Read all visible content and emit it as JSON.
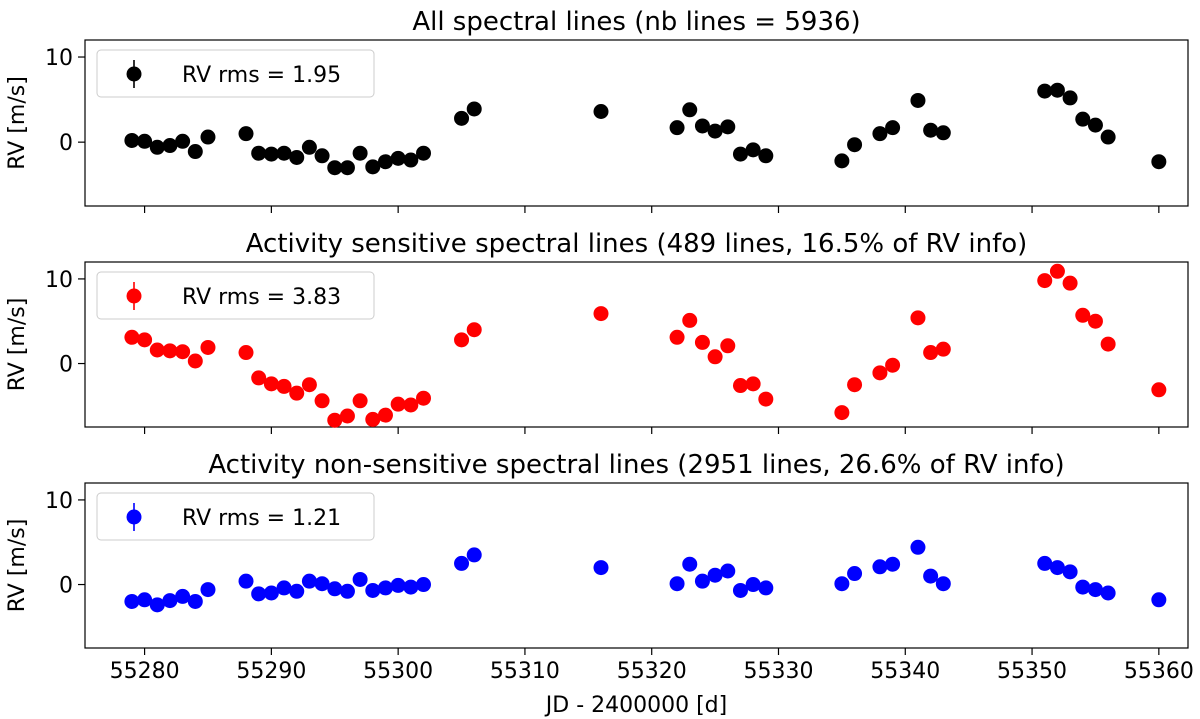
{
  "xlabel": "JD - 2400000 [d]",
  "ylabel": "RV [m/s]",
  "xticks": [
    55280,
    55290,
    55300,
    55310,
    55320,
    55330,
    55340,
    55350,
    55360
  ],
  "chart_data": [
    {
      "type": "scatter",
      "title": "All spectral lines (nb lines = 5936)",
      "xlabel": "",
      "ylabel": "RV [m/s]",
      "xlim": [
        55275.3,
        55362.3
      ],
      "ylim": [
        -7.5,
        12
      ],
      "yticks": [
        0,
        10
      ],
      "color": "#000000",
      "legend": "RV rms = 1.95",
      "legend_location": "upper left",
      "x": [
        55279,
        55280,
        55281,
        55282,
        55283,
        55284,
        55285,
        55288,
        55289,
        55290,
        55291,
        55292,
        55293,
        55294,
        55295,
        55296,
        55297,
        55298,
        55299,
        55300,
        55301,
        55302,
        55305,
        55306,
        55316,
        55322,
        55323,
        55324,
        55325,
        55326,
        55327,
        55328,
        55329,
        55335,
        55336,
        55338,
        55339,
        55341,
        55342,
        55343,
        55351,
        55352,
        55353,
        55354,
        55355,
        55356,
        55360
      ],
      "y": [
        0.2,
        0.1,
        -0.6,
        -0.4,
        0.1,
        -1.1,
        0.6,
        1.0,
        -1.3,
        -1.4,
        -1.3,
        -1.8,
        -0.6,
        -1.6,
        -3.0,
        -3.0,
        -1.3,
        -2.9,
        -2.3,
        -1.9,
        -2.1,
        -1.3,
        2.8,
        3.9,
        3.6,
        1.7,
        3.8,
        1.9,
        1.3,
        1.8,
        -1.4,
        -0.9,
        -1.6,
        -2.2,
        -0.3,
        1.0,
        1.7,
        4.9,
        1.4,
        1.1,
        6.0,
        6.1,
        5.2,
        2.7,
        2.0,
        0.6,
        -2.3
      ]
    },
    {
      "type": "scatter",
      "title": "Activity sensitive spectral lines (489 lines, 16.5% of RV info)",
      "xlabel": "",
      "ylabel": "RV [m/s]",
      "xlim": [
        55275.3,
        55362.3
      ],
      "ylim": [
        -7.5,
        12
      ],
      "yticks": [
        0,
        10
      ],
      "color": "#ff0000",
      "legend": "RV rms = 3.83",
      "legend_location": "upper left",
      "x": [
        55279,
        55280,
        55281,
        55282,
        55283,
        55284,
        55285,
        55288,
        55289,
        55290,
        55291,
        55292,
        55293,
        55294,
        55295,
        55296,
        55297,
        55298,
        55299,
        55300,
        55301,
        55302,
        55305,
        55306,
        55316,
        55322,
        55323,
        55324,
        55325,
        55326,
        55327,
        55328,
        55329,
        55335,
        55336,
        55338,
        55339,
        55341,
        55342,
        55343,
        55351,
        55352,
        55353,
        55354,
        55355,
        55356,
        55360
      ],
      "y": [
        3.1,
        2.8,
        1.6,
        1.5,
        1.4,
        0.3,
        1.9,
        1.3,
        -1.7,
        -2.4,
        -2.7,
        -3.5,
        -2.5,
        -4.4,
        -6.7,
        -6.2,
        -4.4,
        -6.6,
        -6.1,
        -4.8,
        -4.9,
        -4.1,
        2.8,
        4.0,
        5.9,
        3.1,
        5.1,
        2.5,
        0.8,
        2.1,
        -2.6,
        -2.4,
        -4.2,
        -5.8,
        -2.5,
        -1.1,
        -0.2,
        5.4,
        1.3,
        1.7,
        9.8,
        10.9,
        9.5,
        5.7,
        5.0,
        2.3,
        -3.1
      ]
    },
    {
      "type": "scatter",
      "title": "Activity non-sensitive spectral lines (2951 lines, 26.6% of RV info)",
      "xlabel": "JD - 2400000 [d]",
      "ylabel": "RV [m/s]",
      "xlim": [
        55275.3,
        55362.3
      ],
      "ylim": [
        -7.5,
        12
      ],
      "yticks": [
        0,
        10
      ],
      "color": "#0000ff",
      "legend": "RV rms = 1.21",
      "legend_location": "upper left",
      "x": [
        55279,
        55280,
        55281,
        55282,
        55283,
        55284,
        55285,
        55288,
        55289,
        55290,
        55291,
        55292,
        55293,
        55294,
        55295,
        55296,
        55297,
        55298,
        55299,
        55300,
        55301,
        55302,
        55305,
        55306,
        55316,
        55322,
        55323,
        55324,
        55325,
        55326,
        55327,
        55328,
        55329,
        55335,
        55336,
        55338,
        55339,
        55341,
        55342,
        55343,
        55351,
        55352,
        55353,
        55354,
        55355,
        55356,
        55360
      ],
      "y": [
        -2.0,
        -1.8,
        -2.4,
        -1.9,
        -1.4,
        -2.0,
        -0.6,
        0.4,
        -1.1,
        -1.0,
        -0.4,
        -0.8,
        0.4,
        0.1,
        -0.5,
        -0.8,
        0.6,
        -0.7,
        -0.4,
        -0.1,
        -0.3,
        0.0,
        2.5,
        3.5,
        2.0,
        0.1,
        2.4,
        0.4,
        1.1,
        1.6,
        -0.7,
        0.0,
        -0.4,
        0.1,
        1.3,
        2.1,
        2.4,
        4.4,
        1.0,
        0.1,
        2.5,
        2.0,
        1.5,
        -0.3,
        -0.6,
        -1.0,
        -1.8
      ]
    }
  ]
}
